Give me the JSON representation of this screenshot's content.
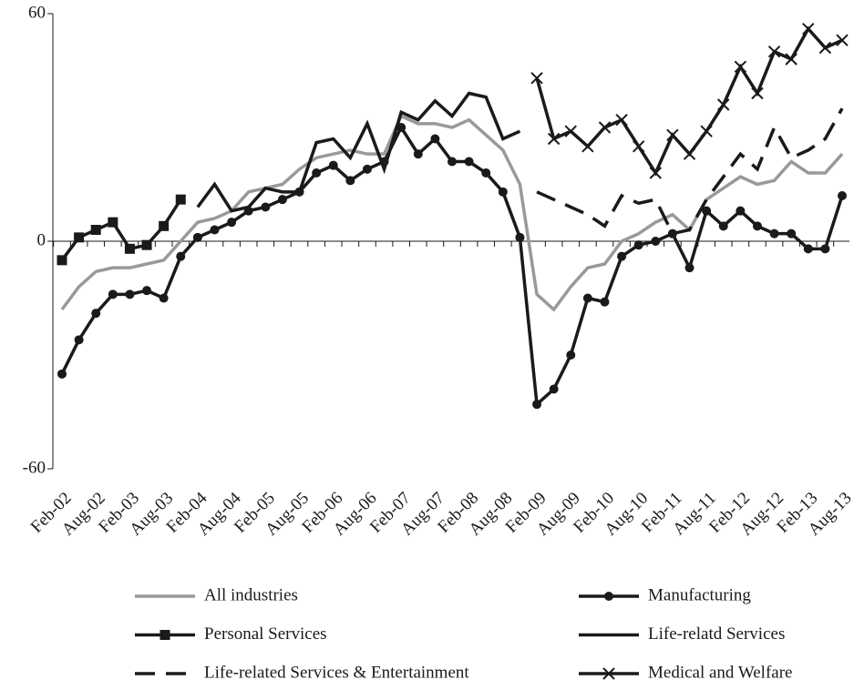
{
  "chart_data": {
    "type": "line",
    "categories": [
      "Feb-02",
      null,
      "Aug-02",
      null,
      "Feb-03",
      null,
      "Aug-03",
      null,
      "Feb-04",
      null,
      "Aug-04",
      null,
      "Feb-05",
      null,
      "Aug-05",
      null,
      "Feb-06",
      null,
      "Aug-06",
      null,
      "Feb-07",
      null,
      "Aug-07",
      null,
      "Feb-08",
      null,
      "Aug-08",
      null,
      "Feb-09",
      null,
      "Aug-09",
      null,
      "Feb-10",
      null,
      "Aug-10",
      null,
      "Feb-11",
      null,
      "Aug-11",
      null,
      "Feb-12",
      null,
      "Aug-12",
      null,
      "Feb-13",
      null,
      "Aug-13"
    ],
    "ylim": [
      -60,
      60
    ],
    "yticks": [
      -60,
      0,
      60
    ],
    "series": [
      {
        "name": "All industries",
        "color": "#999999",
        "values": [
          -18,
          -12,
          -8,
          -7,
          -7,
          -6,
          -5,
          0,
          5,
          6,
          8,
          13,
          14,
          15,
          19,
          22,
          23,
          24,
          23,
          23,
          33,
          31,
          31,
          30,
          32,
          28,
          24,
          15,
          -14,
          -18,
          -12,
          -7,
          -6,
          0,
          2,
          5,
          7,
          3,
          11,
          14,
          17,
          15,
          16,
          21,
          18,
          18,
          23
        ]
      },
      {
        "name": "Manufacturing",
        "color": "#1a1a1a",
        "marker": "circle",
        "values": [
          -35,
          -26,
          -19,
          -14,
          -14,
          -13,
          -15,
          -4,
          1,
          3,
          5,
          8,
          9,
          11,
          13,
          18,
          20,
          16,
          19,
          21,
          30,
          23,
          27,
          21,
          21,
          18,
          13,
          1,
          -43,
          -39,
          -30,
          -15,
          -16,
          -4,
          -1,
          0,
          2,
          -7,
          8,
          4,
          8,
          4,
          2,
          2,
          -2,
          -2,
          12
        ]
      },
      {
        "name": "Personal Services",
        "color": "#1a1a1a",
        "marker": "square",
        "values": [
          -5,
          1,
          3,
          5,
          -2,
          -1,
          4,
          11,
          null,
          null,
          null,
          null,
          null,
          null,
          null,
          null,
          null,
          null,
          null,
          null,
          null,
          null,
          null,
          null,
          null,
          null,
          null,
          null,
          null,
          null,
          null,
          null,
          null,
          null,
          null,
          null,
          null,
          null,
          null,
          null,
          null,
          null,
          null,
          null,
          null,
          null,
          null
        ]
      },
      {
        "name": "Life-relatd Services",
        "color": "#1a1a1a",
        "values": [
          null,
          null,
          null,
          null,
          null,
          null,
          null,
          null,
          9,
          15,
          8,
          9,
          14,
          13,
          13,
          26,
          27,
          22,
          31,
          19,
          34,
          32,
          37,
          33,
          39,
          38,
          27,
          29,
          null,
          null,
          null,
          null,
          null,
          null,
          null,
          null,
          null,
          null,
          null,
          null,
          null,
          null,
          null,
          null,
          null,
          null,
          null
        ]
      },
      {
        "name": "Life-related Services & Entertainment",
        "color": "#1a1a1a",
        "dash": true,
        "values": [
          null,
          null,
          null,
          null,
          null,
          null,
          null,
          null,
          null,
          null,
          null,
          null,
          null,
          null,
          null,
          null,
          null,
          null,
          null,
          null,
          null,
          null,
          null,
          null,
          null,
          null,
          null,
          null,
          13,
          11,
          9,
          7,
          4,
          12,
          10,
          11,
          2,
          3,
          11,
          17,
          23,
          19,
          30,
          22,
          24,
          27,
          35
        ]
      },
      {
        "name": "Medical and Welfare",
        "color": "#1a1a1a",
        "marker": "x",
        "values": [
          null,
          null,
          null,
          null,
          null,
          null,
          null,
          null,
          null,
          null,
          null,
          null,
          null,
          null,
          null,
          null,
          null,
          null,
          null,
          null,
          null,
          null,
          null,
          null,
          null,
          null,
          null,
          null,
          43,
          27,
          29,
          25,
          30,
          32,
          25,
          18,
          28,
          23,
          29,
          36,
          46,
          39,
          50,
          48,
          56,
          51,
          53
        ]
      }
    ]
  }
}
